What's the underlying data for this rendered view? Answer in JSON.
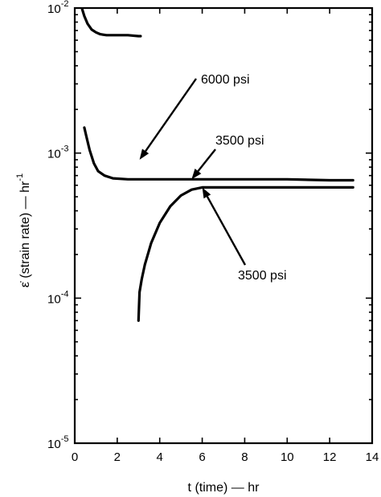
{
  "chart_data": {
    "type": "line",
    "xlabel": "t (time) — hr",
    "ylabel": "ε̇ (strain rate) — hr",
    "ylabel_exponent": "-1",
    "xlim": [
      0,
      14
    ],
    "ylim": [
      1e-05,
      0.01
    ],
    "yscale": "log",
    "grid": false,
    "x_ticks": [
      "0",
      "2",
      "4",
      "6",
      "8",
      "10",
      "12",
      "14"
    ],
    "y_ticks": [
      {
        "base": "10",
        "exp": "-2",
        "value": 0.01
      },
      {
        "base": "10",
        "exp": "-3",
        "value": 0.001
      },
      {
        "base": "10",
        "exp": "-4",
        "value": 0.0001
      },
      {
        "base": "10",
        "exp": "-5",
        "value": 1e-05
      }
    ],
    "series": [
      {
        "x": [
          0.35,
          0.45,
          0.6,
          0.8,
          1.0,
          1.2,
          1.5,
          2.0,
          2.5,
          3.0,
          3.05,
          3.1
        ],
        "y": [
          0.0098,
          0.0088,
          0.0078,
          0.0071,
          0.0068,
          0.0066,
          0.0065,
          0.0065,
          0.0065,
          0.0064,
          0.0064,
          0.0064
        ]
      },
      {
        "x": [
          3.0,
          3.05,
          3.15,
          3.3,
          3.6,
          4.0,
          4.5,
          5.0,
          5.5,
          6.0,
          6.5,
          8.0,
          10.0,
          12.0,
          13.1
        ],
        "y": [
          7e-05,
          0.00011,
          0.000135,
          0.00017,
          0.00024,
          0.00033,
          0.00043,
          0.00051,
          0.00056,
          0.00058,
          0.00058,
          0.00058,
          0.00058,
          0.00058,
          0.00058
        ]
      },
      {
        "x": [
          0.45,
          0.55,
          0.7,
          0.9,
          1.1,
          1.4,
          1.8,
          2.5,
          4.0,
          6.0,
          8.0,
          10.0,
          12.0,
          13.1
        ],
        "y": [
          0.0015,
          0.0013,
          0.00105,
          0.00085,
          0.00075,
          0.0007,
          0.00067,
          0.00066,
          0.00066,
          0.00066,
          0.00066,
          0.00066,
          0.00065,
          0.00065
        ]
      }
    ],
    "annotations": [
      {
        "text": "6000 psi",
        "points_to": {
          "x": 3.05,
          "y": 0.0009
        }
      },
      {
        "text": "3500 psi",
        "points_to": {
          "x": 5.5,
          "y": 0.00066
        }
      },
      {
        "text": "3500 psi",
        "points_to": {
          "x": 6.0,
          "y": 0.00058
        }
      }
    ]
  }
}
